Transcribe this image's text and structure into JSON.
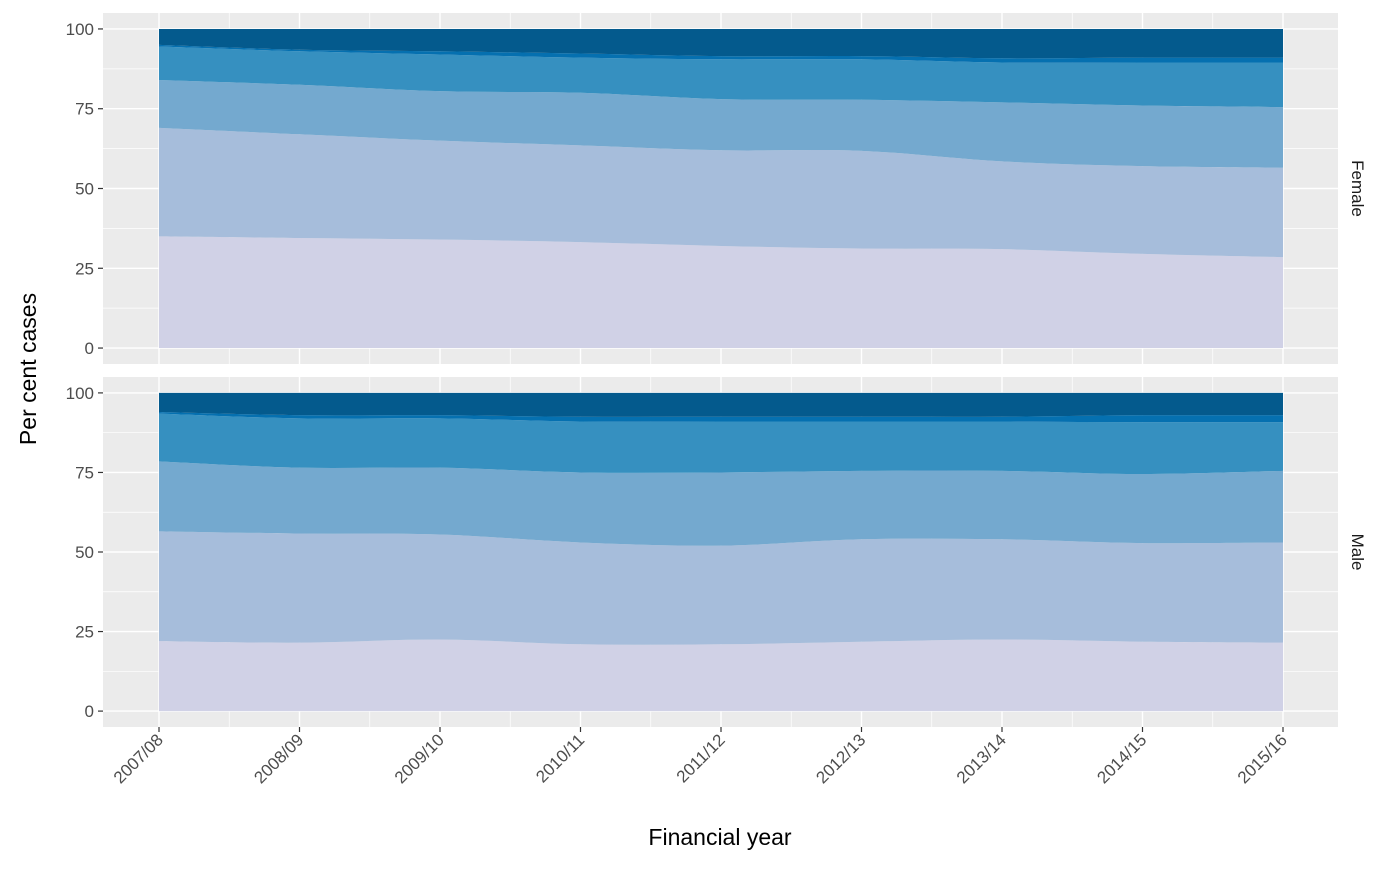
{
  "chart_data": {
    "type": "area",
    "stacked": true,
    "xlabel": "Financial year",
    "ylabel": "Per cent cases",
    "x": [
      "2007/08",
      "2008/09",
      "2009/10",
      "2010/11",
      "2011/12",
      "2012/13",
      "2013/14",
      "2014/15",
      "2015/16"
    ],
    "ylim": [
      0,
      100
    ],
    "yticks": [
      "0",
      "25",
      "50",
      "75",
      "100"
    ],
    "grid": true,
    "legend": "none",
    "colors": [
      "#d0d1e6",
      "#a6bddb",
      "#74a9cf",
      "#3690c0",
      "#0570b0",
      "#045a8d"
    ],
    "panels": [
      {
        "label": "Female",
        "boundaries": [
          [
            35.0,
            34.5,
            34.0,
            33.2,
            32.0,
            31.2,
            31.0,
            29.5,
            28.5
          ],
          [
            69.0,
            67.0,
            65.0,
            63.5,
            62.0,
            61.8,
            58.5,
            57.0,
            56.5
          ],
          [
            84.0,
            82.5,
            80.5,
            80.0,
            78.0,
            77.8,
            77.0,
            76.0,
            75.5
          ],
          [
            94.5,
            93.0,
            92.0,
            91.0,
            90.5,
            90.5,
            89.5,
            89.5,
            89.5
          ],
          [
            95.0,
            93.5,
            93.0,
            92.3,
            91.5,
            91.5,
            90.8,
            91.0,
            91.0
          ],
          [
            100,
            100,
            100,
            100,
            100,
            100,
            100,
            100,
            100
          ]
        ]
      },
      {
        "label": "Male",
        "boundaries": [
          [
            22.0,
            21.5,
            22.5,
            21.0,
            21.0,
            21.8,
            22.5,
            21.8,
            21.5
          ],
          [
            56.5,
            55.8,
            55.5,
            53.0,
            52.0,
            54.0,
            54.0,
            52.8,
            53.0
          ],
          [
            78.5,
            76.5,
            76.5,
            75.0,
            75.0,
            75.5,
            75.5,
            74.5,
            75.5
          ],
          [
            93.5,
            92.0,
            92.0,
            91.0,
            91.0,
            91.0,
            91.0,
            90.8,
            90.8
          ],
          [
            94.0,
            93.0,
            93.0,
            92.5,
            92.5,
            92.5,
            92.5,
            93.0,
            93.0
          ],
          [
            100,
            100,
            100,
            100,
            100,
            100,
            100,
            100,
            100
          ]
        ]
      }
    ]
  }
}
